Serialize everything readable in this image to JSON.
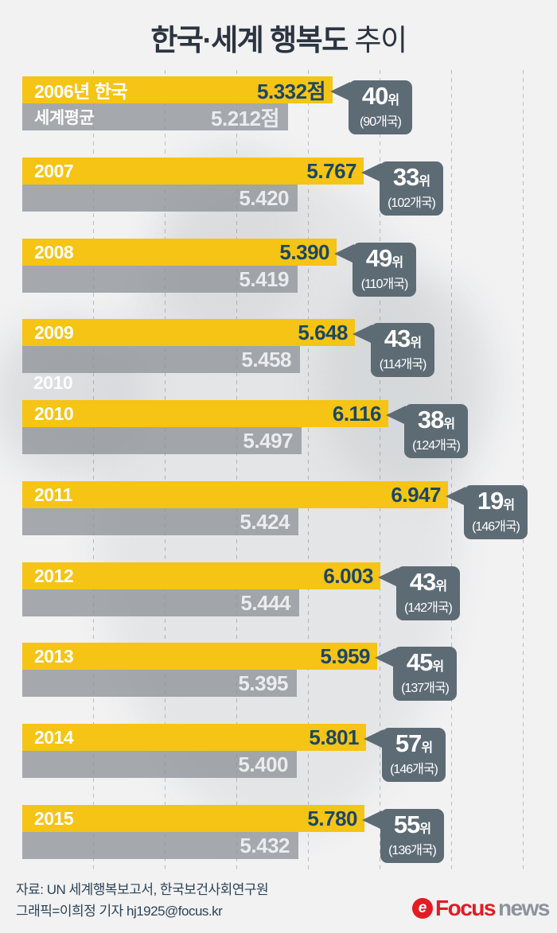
{
  "title": {
    "strong": "한국·세계 행복도",
    "light": " 추이"
  },
  "ghost_label": "2010",
  "rows": [
    {
      "year": "2006년 한국",
      "world_label": "세계평균",
      "korea_value": 5.332,
      "world_value": 5.212,
      "korea_display": "5.332점",
      "world_display": "5.212점",
      "rank": "40",
      "rank_unit": "위",
      "countries": "(90개국)"
    },
    {
      "year": "2007",
      "world_label": "",
      "korea_value": 5.767,
      "world_value": 5.42,
      "korea_display": "5.767",
      "world_display": "5.420",
      "rank": "33",
      "rank_unit": "위",
      "countries": "(102개국)"
    },
    {
      "year": "2008",
      "world_label": "",
      "korea_value": 5.39,
      "world_value": 5.419,
      "korea_display": "5.390",
      "world_display": "5.419",
      "rank": "49",
      "rank_unit": "위",
      "countries": "(110개국)"
    },
    {
      "year": "2009",
      "world_label": "",
      "korea_value": 5.648,
      "world_value": 5.458,
      "korea_display": "5.648",
      "world_display": "5.458",
      "rank": "43",
      "rank_unit": "위",
      "countries": "(114개국)"
    },
    {
      "year": "2010",
      "world_label": "",
      "korea_value": 6.116,
      "world_value": 5.497,
      "korea_display": "6.116",
      "world_display": "5.497",
      "rank": "38",
      "rank_unit": "위",
      "countries": "(124개국)"
    },
    {
      "year": "2011",
      "world_label": "",
      "korea_value": 6.947,
      "world_value": 5.424,
      "korea_display": "6.947",
      "world_display": "5.424",
      "rank": "19",
      "rank_unit": "위",
      "countries": "(146개국)"
    },
    {
      "year": "2012",
      "world_label": "",
      "korea_value": 6.003,
      "world_value": 5.444,
      "korea_display": "6.003",
      "world_display": "5.444",
      "rank": "43",
      "rank_unit": "위",
      "countries": "(142개국)"
    },
    {
      "year": "2013",
      "world_label": "",
      "korea_value": 5.959,
      "world_value": 5.395,
      "korea_display": "5.959",
      "world_display": "5.395",
      "rank": "45",
      "rank_unit": "위",
      "countries": "(137개국)"
    },
    {
      "year": "2014",
      "world_label": "",
      "korea_value": 5.801,
      "world_value": 5.4,
      "korea_display": "5.801",
      "world_display": "5.400",
      "rank": "57",
      "rank_unit": "위",
      "countries": "(146개국)"
    },
    {
      "year": "2015",
      "world_label": "",
      "korea_value": 5.78,
      "world_value": 5.432,
      "korea_display": "5.780",
      "world_display": "5.432",
      "rank": "55",
      "rank_unit": "위",
      "countries": "(136개국)"
    }
  ],
  "footer": {
    "source": "자료: UN 세계행복보고서, 한국보건사회연구원",
    "credit": "그래픽=이희정 기자 hj1925@focus.kr"
  },
  "logo": {
    "mark": "e",
    "brand": "Focus",
    "suffix": "news"
  },
  "colors": {
    "korea_bar": "#f5c414",
    "world_bar": "#a8abae",
    "badge": "#5d6b75",
    "value_text": "#1b4766",
    "background": "#f2f2f3",
    "logo_red": "#e31b23",
    "logo_gray": "#8d939a"
  },
  "chart_data": {
    "type": "bar",
    "orientation": "horizontal",
    "title": "한국·세계 행복도 추이",
    "categories": [
      "2006",
      "2007",
      "2008",
      "2009",
      "2010",
      "2011",
      "2012",
      "2013",
      "2014",
      "2015"
    ],
    "series": [
      {
        "name": "한국",
        "values": [
          5.332,
          5.767,
          5.39,
          5.648,
          6.116,
          6.947,
          6.003,
          5.959,
          5.801,
          5.78
        ]
      },
      {
        "name": "세계평균",
        "values": [
          5.212,
          5.42,
          5.419,
          5.458,
          5.497,
          5.424,
          5.444,
          5.395,
          5.4,
          5.432
        ]
      }
    ],
    "annotations": [
      "40위 (90개국)",
      "33위 (102개국)",
      "49위 (110개국)",
      "43위 (114개국)",
      "38위 (124개국)",
      "19위 (146개국)",
      "43위 (142개국)",
      "45위 (137개국)",
      "57위 (146개국)",
      "55위 (136개국)"
    ],
    "xlabel": "",
    "ylabel": "",
    "x_axis": {
      "min": 1,
      "gridline_values": [
        2,
        3,
        4,
        5,
        6,
        7,
        8
      ],
      "grid": true
    },
    "legend_position": "none",
    "value_unit": "점",
    "source": "UN 세계행복보고서, 한국보건사회연구원"
  }
}
